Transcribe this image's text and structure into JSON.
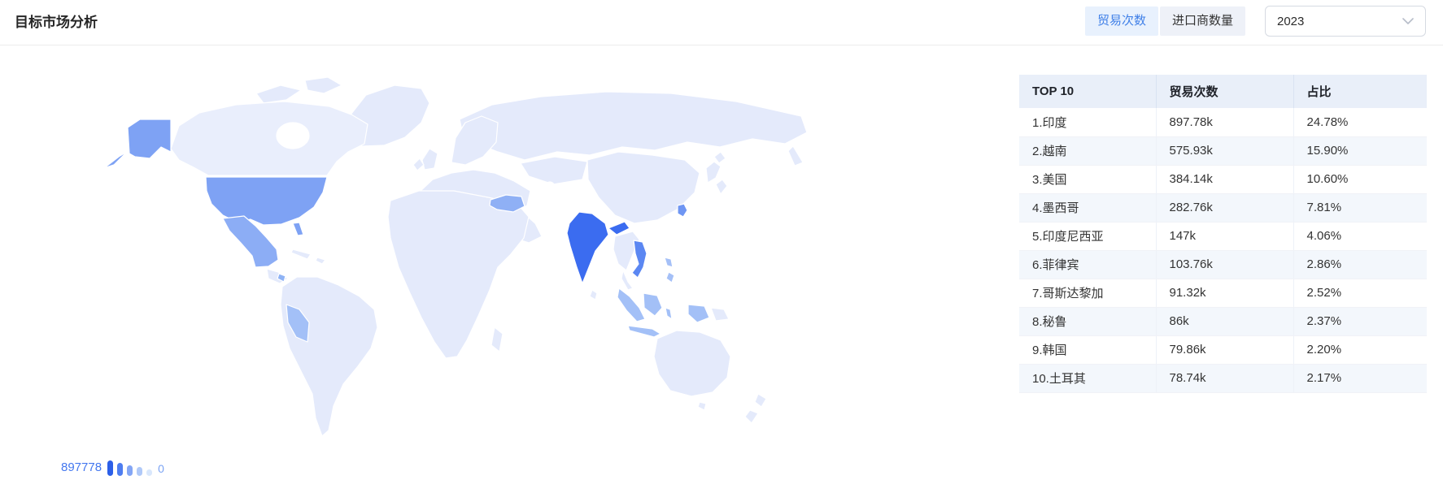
{
  "panel": {
    "title": "目标市场分析"
  },
  "controls": {
    "tabs": [
      {
        "label": "贸易次数",
        "active": true
      },
      {
        "label": "进口商数量",
        "active": false
      }
    ],
    "year_dropdown": {
      "value": "2023"
    }
  },
  "table": {
    "columns": [
      "TOP 10",
      "贸易次数",
      "占比"
    ],
    "rows": [
      [
        "1.印度",
        "897.78k",
        "24.78%"
      ],
      [
        "2.越南",
        "575.93k",
        "15.90%"
      ],
      [
        "3.美国",
        "384.14k",
        "10.60%"
      ],
      [
        "4.墨西哥",
        "282.76k",
        "7.81%"
      ],
      [
        "5.印度尼西亚",
        "147k",
        "4.06%"
      ],
      [
        "6.菲律宾",
        "103.76k",
        "2.86%"
      ],
      [
        "7.哥斯达黎加",
        "91.32k",
        "2.52%"
      ],
      [
        "8.秘鲁",
        "86k",
        "2.37%"
      ],
      [
        "9.韩国",
        "79.86k",
        "2.20%"
      ],
      [
        "10.土耳其",
        "78.74k",
        "2.17%"
      ]
    ]
  },
  "map_legend": {
    "max": "897778",
    "min": "0",
    "bars": [
      {
        "color": "#2c5fe8",
        "height": 19
      },
      {
        "color": "#4e7df0",
        "height": 16
      },
      {
        "color": "#84a6f5",
        "height": 13
      },
      {
        "color": "#b0c9f8",
        "height": 11
      },
      {
        "color": "#d9e7fc",
        "height": 8
      }
    ]
  },
  "chart_data": {
    "type": "choropleth-map",
    "title": "目标市场分析",
    "metric": "贸易次数",
    "year": "2023",
    "value_range": [
      0,
      897778
    ],
    "legend_position": "bottom-left",
    "countries": [
      {
        "rank": 1,
        "name": "印度",
        "trades": 897778,
        "display": "897.78k",
        "share_pct": 24.78,
        "color": "#3b6cf0"
      },
      {
        "rank": 2,
        "name": "越南",
        "trades": 575930,
        "display": "575.93k",
        "share_pct": 15.9,
        "color": "#5b87f2"
      },
      {
        "rank": 3,
        "name": "美国",
        "trades": 384140,
        "display": "384.14k",
        "share_pct": 10.6,
        "color": "#7ea2f4"
      },
      {
        "rank": 4,
        "name": "墨西哥",
        "trades": 282760,
        "display": "282.76k",
        "share_pct": 7.81,
        "color": "#8cadf5"
      },
      {
        "rank": 5,
        "name": "印度尼西亚",
        "trades": 147000,
        "display": "147k",
        "share_pct": 4.06,
        "color": "#a3c0f7"
      },
      {
        "rank": 6,
        "name": "菲律宾",
        "trades": 103760,
        "display": "103.76k",
        "share_pct": 2.86,
        "color": "#a5c0f7"
      },
      {
        "rank": 7,
        "name": "哥斯达黎加",
        "trades": 91320,
        "display": "91.32k",
        "share_pct": 2.52,
        "color": "#8fb3f5"
      },
      {
        "rank": 8,
        "name": "秘鲁",
        "trades": 86000,
        "display": "86k",
        "share_pct": 2.37,
        "color": "#a3c0f7"
      },
      {
        "rank": 9,
        "name": "韩国",
        "trades": 79860,
        "display": "79.86k",
        "share_pct": 2.2,
        "color": "#6f96f3"
      },
      {
        "rank": 10,
        "name": "土耳其",
        "trades": 78740,
        "display": "78.74k",
        "share_pct": 2.17,
        "color": "#8fb0f5"
      }
    ]
  },
  "colors": {
    "accent_blue": "#4080e8",
    "tab_active_bg": "#e8f1fd",
    "tab_inactive_bg": "#eef1f8",
    "table_header_bg": "#e9eff9",
    "land_default": "#e4eafb",
    "legend_text_max": "#4377ef",
    "legend_text_min": "#7ba3f4"
  }
}
